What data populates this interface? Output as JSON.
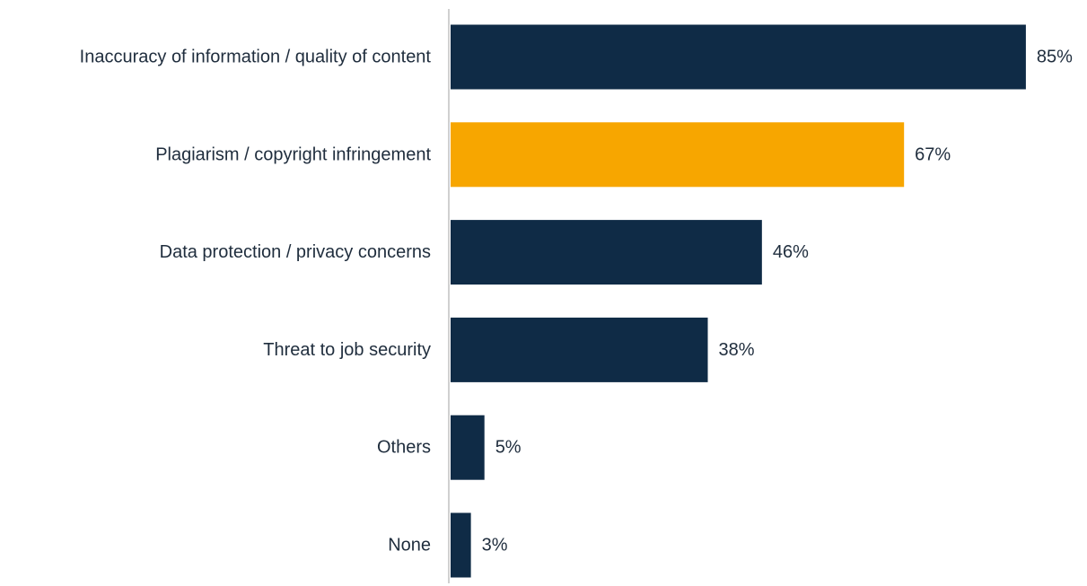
{
  "chart_data": {
    "type": "bar",
    "orientation": "horizontal",
    "categories": [
      "Inaccuracy of information / quality of content",
      "Plagiarism / copyright infringement",
      "Data protection / privacy concerns",
      "Threat to job security",
      "Others",
      "None"
    ],
    "values": [
      85,
      67,
      46,
      38,
      5,
      3
    ],
    "value_labels": [
      "85%",
      "67%",
      "46%",
      "38%",
      "5%",
      "3%"
    ],
    "unit": "%",
    "xlim": [
      0,
      100
    ],
    "grid": false,
    "legend": "none",
    "title": "",
    "xlabel": "",
    "ylabel": "",
    "colors": {
      "default_bar": "#0f2b46",
      "highlight_bar": "#f7a600",
      "highlight_index": 1,
      "axis_line": "#d0d0d0",
      "text": "#1f2d3d"
    }
  }
}
